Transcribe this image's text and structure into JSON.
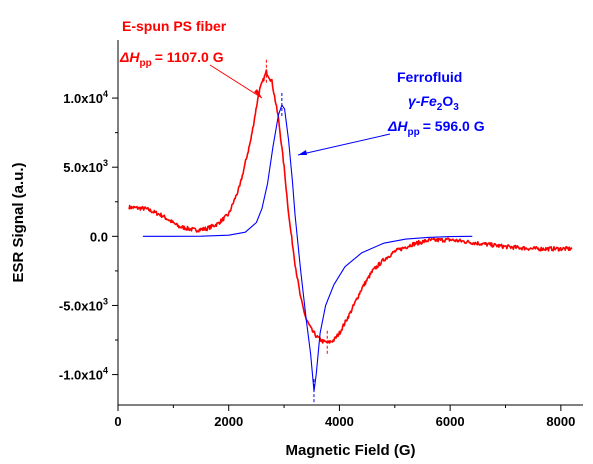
{
  "chart_data": {
    "type": "line",
    "xlabel": "Magnetic Field (G)",
    "ylabel": "ESR Signal (a.u.)",
    "xlim": [
      0,
      8400
    ],
    "ylim": [
      -12200,
      14200
    ],
    "x_ticks": [
      0,
      2000,
      4000,
      6000,
      8000
    ],
    "y_ticks": [
      {
        "value": 10000,
        "mant": "1.0x10",
        "exp": "4"
      },
      {
        "value": 5000,
        "mant": "5.0x10",
        "exp": "3"
      },
      {
        "value": 0,
        "mant": "0.0",
        "exp": ""
      },
      {
        "value": -5000,
        "mant": "-5.0x10",
        "exp": "3"
      },
      {
        "value": -10000,
        "mant": "-1.0x10",
        "exp": "4"
      }
    ],
    "grid": false,
    "series": [
      {
        "name": "E-spun PS fiber",
        "color": "#ff0000",
        "noise": 150,
        "points": [
          [
            200,
            2100
          ],
          [
            500,
            2000
          ],
          [
            800,
            1500
          ],
          [
            1100,
            700
          ],
          [
            1400,
            450
          ],
          [
            1600,
            550
          ],
          [
            1800,
            900
          ],
          [
            2000,
            1600
          ],
          [
            2200,
            3600
          ],
          [
            2400,
            7000
          ],
          [
            2550,
            10500
          ],
          [
            2680,
            11900
          ],
          [
            2780,
            11200
          ],
          [
            2900,
            8500
          ],
          [
            3000,
            5000
          ],
          [
            3100,
            1000
          ],
          [
            3200,
            -2000
          ],
          [
            3300,
            -4500
          ],
          [
            3400,
            -6000
          ],
          [
            3500,
            -6800
          ],
          [
            3600,
            -7300
          ],
          [
            3700,
            -7600
          ],
          [
            3800,
            -7700
          ],
          [
            3900,
            -7500
          ],
          [
            4000,
            -7000
          ],
          [
            4200,
            -5500
          ],
          [
            4400,
            -3800
          ],
          [
            4600,
            -2500
          ],
          [
            4800,
            -1700
          ],
          [
            5000,
            -1100
          ],
          [
            5300,
            -600
          ],
          [
            5600,
            -300
          ],
          [
            6000,
            -250
          ],
          [
            6500,
            -500
          ],
          [
            7000,
            -750
          ],
          [
            7500,
            -900
          ],
          [
            8200,
            -900
          ]
        ],
        "markers": [
          2680,
          3780
        ]
      },
      {
        "name": "Ferrofluid γ-Fe₂O₃",
        "color": "#0000ff",
        "noise": 0,
        "points": [
          [
            450,
            0
          ],
          [
            1000,
            0
          ],
          [
            1500,
            10
          ],
          [
            2000,
            80
          ],
          [
            2300,
            300
          ],
          [
            2500,
            1000
          ],
          [
            2600,
            2000
          ],
          [
            2700,
            3800
          ],
          [
            2800,
            6500
          ],
          [
            2900,
            8800
          ],
          [
            2960,
            9500
          ],
          [
            3010,
            9200
          ],
          [
            3080,
            7000
          ],
          [
            3150,
            4000
          ],
          [
            3200,
            1500
          ],
          [
            3300,
            -2500
          ],
          [
            3400,
            -6000
          ],
          [
            3480,
            -8500
          ],
          [
            3540,
            -11200
          ],
          [
            3580,
            -10000
          ],
          [
            3650,
            -7000
          ],
          [
            3750,
            -5000
          ],
          [
            3900,
            -3500
          ],
          [
            4100,
            -2200
          ],
          [
            4400,
            -1200
          ],
          [
            4800,
            -500
          ],
          [
            5200,
            -200
          ],
          [
            5600,
            -80
          ],
          [
            6000,
            -20
          ],
          [
            6400,
            0
          ]
        ],
        "markers": [
          2960,
          3540
        ]
      }
    ],
    "annotations": [
      {
        "id": "red",
        "color": "#ff0000",
        "title": "E-spun PS fiber",
        "dh": "ΔH",
        "sub": "pp",
        "value": "= 1107.0 G"
      },
      {
        "id": "blue",
        "color": "#0000ff",
        "title": "Ferrofluid",
        "formula_a": "γ-Fe",
        "formula_sub1": "2",
        "formula_b": "O",
        "formula_sub2": "3",
        "dh": "ΔH",
        "sub": "pp",
        "value": "= 596.0 G"
      }
    ]
  }
}
